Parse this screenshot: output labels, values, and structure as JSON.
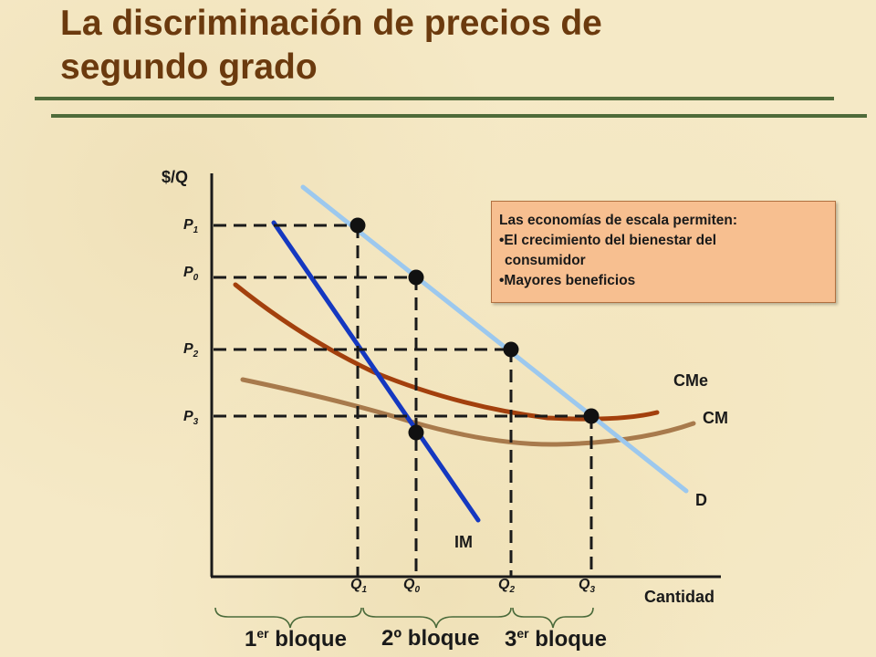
{
  "title": {
    "line1": "La discriminación de precios de",
    "line2": "segundo grado"
  },
  "axes": {
    "y_label": "$/Q",
    "x_label": "Cantidad"
  },
  "prices": {
    "p1": {
      "main": "P",
      "sub": "1"
    },
    "p0": {
      "main": "P",
      "sub": "0"
    },
    "p2": {
      "main": "P",
      "sub": "2"
    },
    "p3": {
      "main": "P",
      "sub": "3"
    }
  },
  "quantities": {
    "q1": {
      "main": "Q",
      "sub": "1"
    },
    "q0": {
      "main": "Q",
      "sub": "0"
    },
    "q2": {
      "main": "Q",
      "sub": "2"
    },
    "q3": {
      "main": "Q",
      "sub": "3"
    }
  },
  "curves": {
    "cme": "CMe",
    "cm": "CM",
    "d": "D",
    "im": "IM"
  },
  "note": {
    "heading": "Las economías de escala permiten:",
    "bullet1_line1": "•El crecimiento del bienestar del",
    "bullet1_line2": "consumidor",
    "bullet2": "•Mayores beneficios"
  },
  "blocks": {
    "b1_num": "1",
    "b1_sup": "er",
    "b1_word": " bloque",
    "b2": "2º bloque",
    "b3_num": "3",
    "b3_sup": "er",
    "b3_word": " bloque"
  },
  "colors": {
    "title": "#6b3a0e",
    "demand": "#9cc8ee",
    "marginal_revenue": "#1538c0",
    "average_cost": "#a3400d",
    "marginal_cost": "#a87a4c",
    "note_fill": "#f7bf90"
  }
}
